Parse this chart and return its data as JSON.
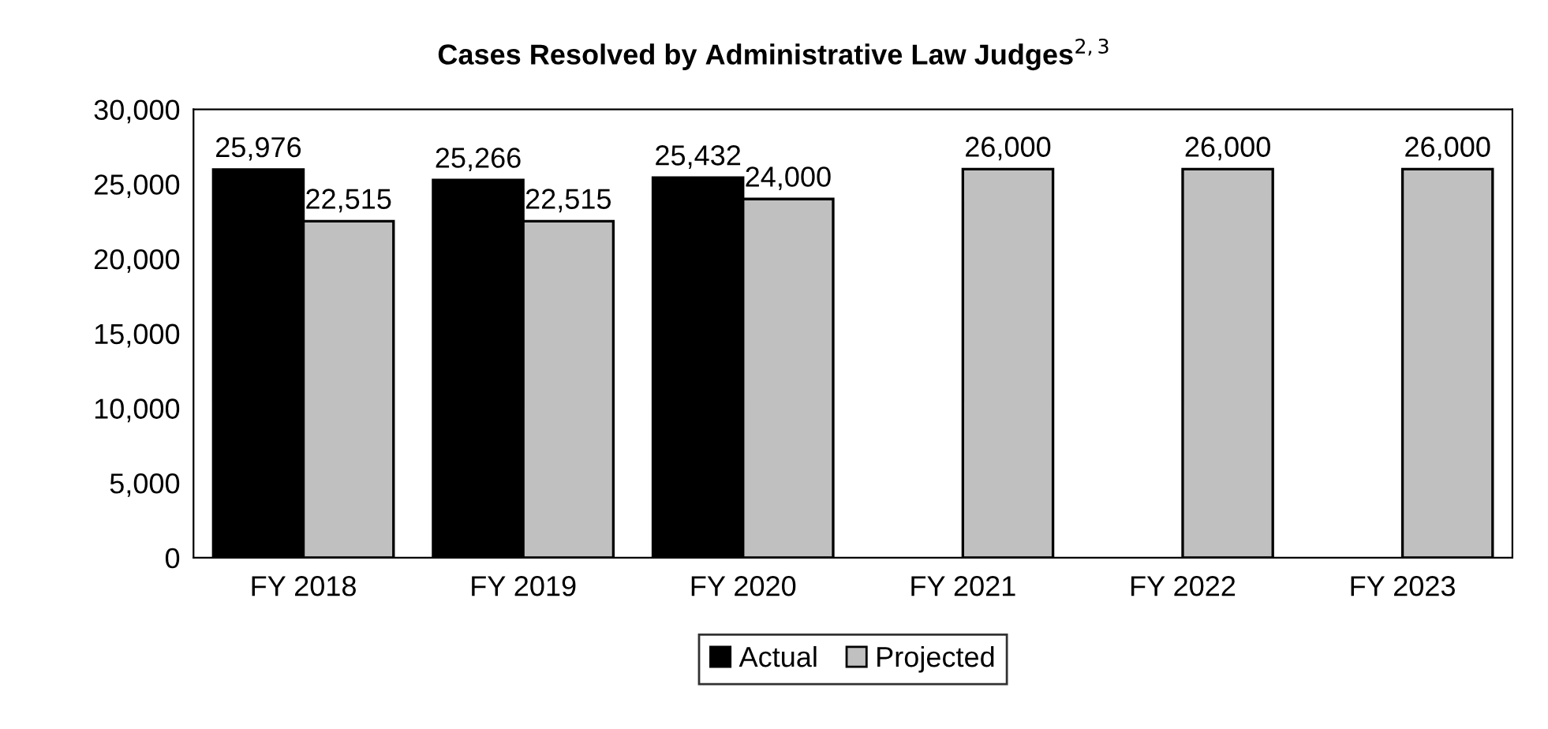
{
  "chart_data": {
    "type": "bar",
    "title": "Cases Resolved by Administrative Law Judges$^{2,3}$",
    "categories": [
      "FY 2018",
      "FY 2019",
      "FY 2020",
      "FY 2021",
      "FY 2022",
      "FY 2023"
    ],
    "series": [
      {
        "name": "Actual",
        "color": "#000000",
        "values": [
          25976,
          25266,
          25432,
          null,
          null,
          null
        ],
        "value_labels": [
          "25,976",
          "25,266",
          "25,432",
          null,
          null,
          null
        ]
      },
      {
        "name": "Projected",
        "color": "#c0c0c0",
        "values": [
          22515,
          22515,
          24000,
          26000,
          26000,
          26000
        ],
        "value_labels": [
          "22,515",
          "22,515",
          "24,000",
          "26,000",
          "26,000",
          "26,000"
        ]
      }
    ],
    "ylim": [
      0,
      30000
    ],
    "yticks": [
      {
        "value": 0,
        "label": "0"
      },
      {
        "value": 5000,
        "label": "5,000"
      },
      {
        "value": 10000,
        "label": "10,000"
      },
      {
        "value": 15000,
        "label": "15,000"
      },
      {
        "value": 20000,
        "label": "20,000"
      },
      {
        "value": 25000,
        "label": "25,000"
      },
      {
        "value": 30000,
        "label": "30,000"
      }
    ],
    "grid": false,
    "legend": "bottom"
  }
}
